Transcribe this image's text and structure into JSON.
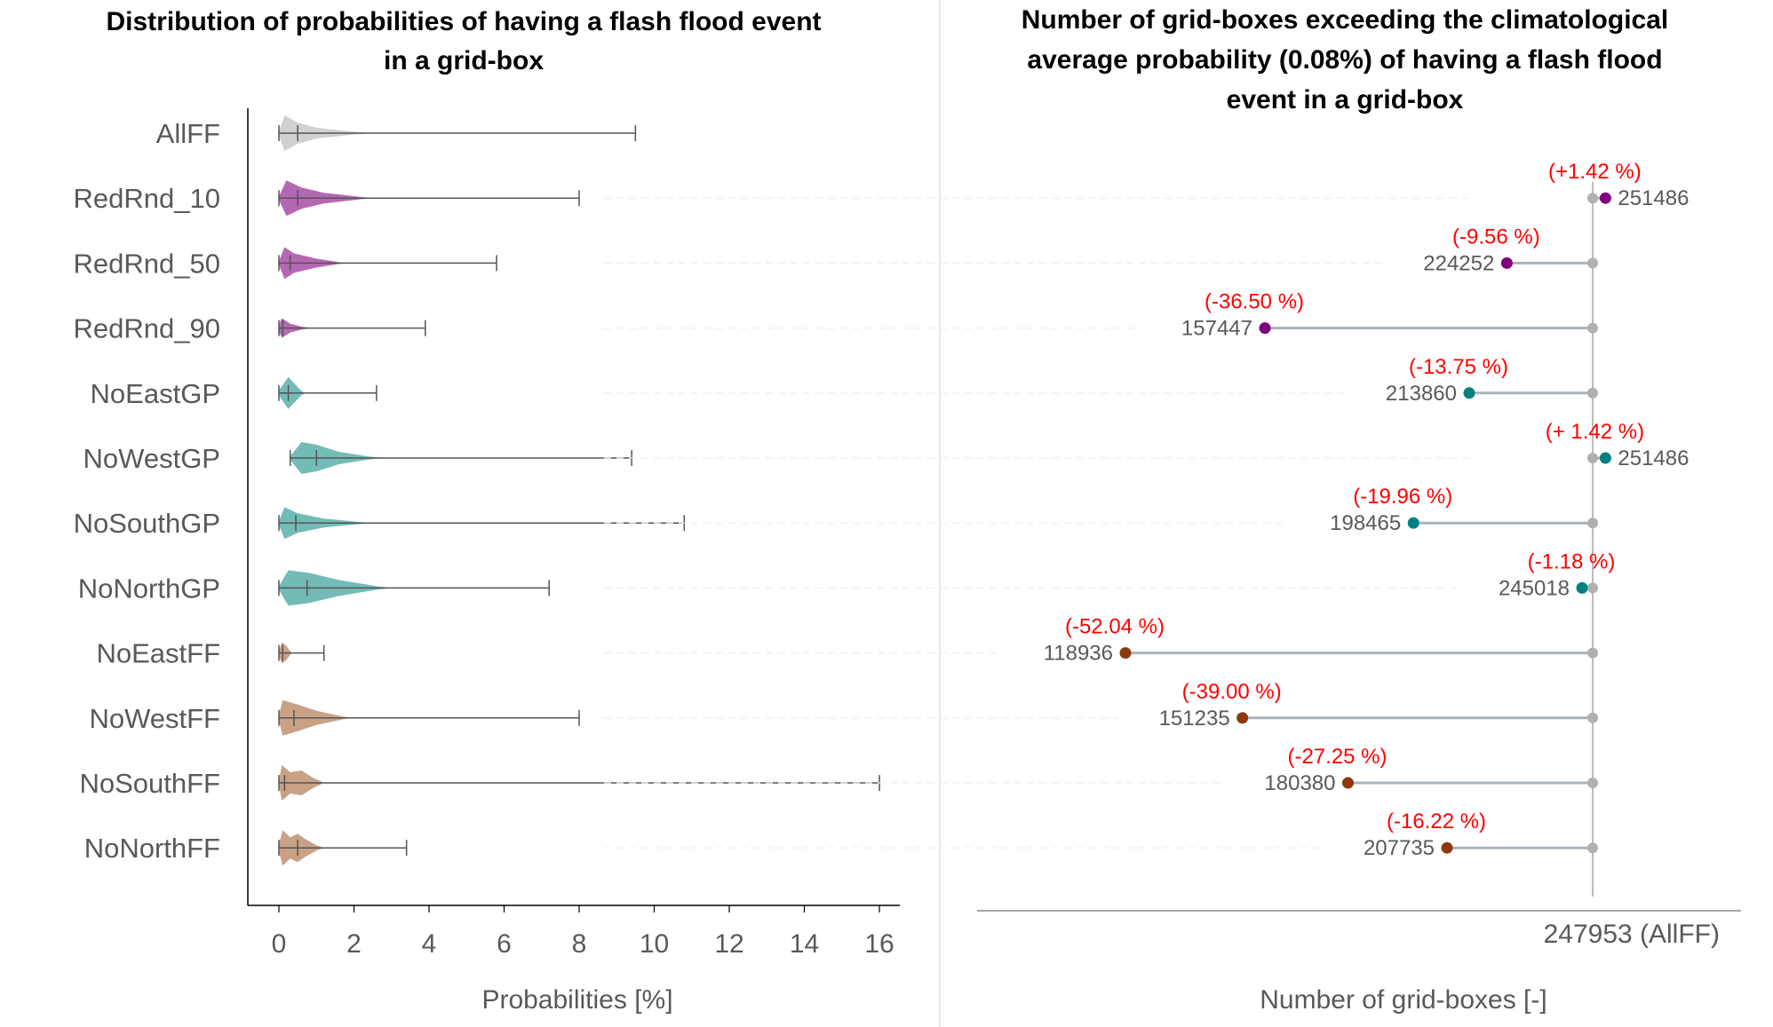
{
  "chart_data": [
    {
      "type": "violin",
      "title": "Distribution of probabilities of having a flash flood event in a grid-box",
      "title_lines": [
        "Distribution of probabilities of having a flash flood event",
        "in a grid-box"
      ],
      "xlabel": "Probabilities [%]",
      "xlim": [
        0,
        16
      ],
      "xticks": [
        0,
        2,
        4,
        6,
        8,
        10,
        12,
        14,
        16
      ],
      "grid": false,
      "colors": {
        "AllFF": "#c8c8c8",
        "RedRnd": "#a94ca6",
        "GP": "#5aafaa",
        "FF": "#c09070",
        "whisker": "#555555"
      },
      "categories": [
        "AllFF",
        "RedRnd_10",
        "RedRnd_50",
        "RedRnd_90",
        "NoEastGP",
        "NoWestGP",
        "NoSouthGP",
        "NoNorthGP",
        "NoEastFF",
        "NoWestFF",
        "NoSouthFF",
        "NoNorthFF"
      ],
      "series": [
        {
          "name": "AllFF",
          "color": "#c8c8c8",
          "min": 0.0,
          "median": 0.5,
          "max": 9.5,
          "shape": [
            [
              0,
              0.1
            ],
            [
              0.15,
              1.0
            ],
            [
              0.5,
              0.6
            ],
            [
              1,
              0.3
            ],
            [
              2,
              0.08
            ],
            [
              2.5,
              0
            ]
          ]
        },
        {
          "name": "RedRnd_10",
          "color": "#a94ca6",
          "min": 0.0,
          "median": 0.5,
          "max": 8.0,
          "shape": [
            [
              0,
              0.1
            ],
            [
              0.2,
              1.0
            ],
            [
              0.6,
              0.6
            ],
            [
              1.2,
              0.3
            ],
            [
              2.2,
              0.06
            ],
            [
              2.6,
              0
            ]
          ]
        },
        {
          "name": "RedRnd_50",
          "color": "#a94ca6",
          "min": 0.0,
          "median": 0.3,
          "max": 5.8,
          "shape": [
            [
              0,
              0.1
            ],
            [
              0.15,
              0.9
            ],
            [
              0.4,
              0.55
            ],
            [
              1,
              0.25
            ],
            [
              1.6,
              0.05
            ],
            [
              1.9,
              0
            ]
          ]
        },
        {
          "name": "RedRnd_90",
          "color": "#a94ca6",
          "min": 0.0,
          "median": 0.1,
          "max": 3.9,
          "shape": [
            [
              0,
              0.2
            ],
            [
              0.08,
              0.55
            ],
            [
              0.3,
              0.25
            ],
            [
              0.6,
              0.08
            ],
            [
              0.9,
              0
            ]
          ]
        },
        {
          "name": "NoEastGP",
          "color": "#5aafaa",
          "min": 0.0,
          "median": 0.25,
          "max": 2.6,
          "shape": [
            [
              0,
              0.15
            ],
            [
              0.25,
              0.9
            ],
            [
              0.45,
              0.45
            ],
            [
              0.6,
              0.12
            ],
            [
              0.7,
              0
            ]
          ]
        },
        {
          "name": "NoWestGP",
          "color": "#5aafaa",
          "min": 0.3,
          "median": 1.0,
          "max": 9.4,
          "shape": [
            [
              0.3,
              0.1
            ],
            [
              0.6,
              0.9
            ],
            [
              1.0,
              0.75
            ],
            [
              1.6,
              0.35
            ],
            [
              2.4,
              0.08
            ],
            [
              2.8,
              0
            ]
          ]
        },
        {
          "name": "NoSouthGP",
          "color": "#5aafaa",
          "min": 0.0,
          "median": 0.45,
          "max": 10.8,
          "shape": [
            [
              0,
              0.1
            ],
            [
              0.15,
              0.9
            ],
            [
              0.5,
              0.55
            ],
            [
              1.2,
              0.25
            ],
            [
              2.2,
              0.05
            ],
            [
              2.6,
              0
            ]
          ]
        },
        {
          "name": "NoNorthGP",
          "color": "#5aafaa",
          "min": 0.0,
          "median": 0.75,
          "max": 7.2,
          "shape": [
            [
              0,
              0.1
            ],
            [
              0.25,
              1.0
            ],
            [
              0.8,
              0.85
            ],
            [
              1.6,
              0.45
            ],
            [
              2.6,
              0.1
            ],
            [
              3.0,
              0
            ]
          ]
        },
        {
          "name": "NoEastFF",
          "color": "#c09070",
          "min": 0.0,
          "median": 0.1,
          "max": 1.2,
          "shape": [
            [
              0,
              0.15
            ],
            [
              0.08,
              0.6
            ],
            [
              0.2,
              0.4
            ],
            [
              0.3,
              0.1
            ],
            [
              0.35,
              0
            ]
          ]
        },
        {
          "name": "NoWestFF",
          "color": "#c09070",
          "min": 0.0,
          "median": 0.4,
          "max": 8.0,
          "shape": [
            [
              0,
              0.15
            ],
            [
              0.1,
              1.0
            ],
            [
              0.5,
              0.75
            ],
            [
              1.0,
              0.4
            ],
            [
              1.7,
              0.08
            ],
            [
              2.0,
              0
            ]
          ]
        },
        {
          "name": "NoSouthFF",
          "color": "#c09070",
          "min": 0.0,
          "median": 0.15,
          "max": 16.0,
          "shape": [
            [
              0,
              0.15
            ],
            [
              0.08,
              1.0
            ],
            [
              0.3,
              0.6
            ],
            [
              0.6,
              0.7
            ],
            [
              0.9,
              0.3
            ],
            [
              1.2,
              0
            ]
          ]
        },
        {
          "name": "NoNorthFF",
          "color": "#c09070",
          "min": 0.0,
          "median": 0.5,
          "max": 3.4,
          "shape": [
            [
              0,
              0.2
            ],
            [
              0.1,
              1.0
            ],
            [
              0.3,
              0.6
            ],
            [
              0.5,
              0.8
            ],
            [
              0.7,
              0.5
            ],
            [
              1.0,
              0.15
            ],
            [
              1.2,
              0
            ]
          ]
        }
      ]
    },
    {
      "type": "lollipop",
      "title": "Number of grid-boxes exceeding the climatological average probability (0.08%) of having a flash flood event in a grid-box",
      "title_lines": [
        "Number of grid-boxes exceeding the climatological",
        "average probability (0.08%) of having a flash flood",
        "event in a grid-box"
      ],
      "xlabel": "Number of grid-boxes [-]",
      "reference": {
        "value": 247953,
        "label": "247953 (AllFF)"
      },
      "xlim": [
        100000,
        255000
      ],
      "grid": false,
      "colors": {
        "stem": "#a9b3bc",
        "reference": "#a6a6a6",
        "purple": "#800080",
        "teal": "#008080",
        "brown": "#8b3a0e",
        "pct": "#ff0000"
      },
      "categories": [
        "RedRnd_10",
        "RedRnd_50",
        "RedRnd_90",
        "NoEastGP",
        "NoWestGP",
        "NoSouthGP",
        "NoNorthGP",
        "NoEastFF",
        "NoWestFF",
        "NoSouthFF",
        "NoNorthFF"
      ],
      "series": [
        {
          "name": "RedRnd_10",
          "value": 251486,
          "label": "251486",
          "pct": "(+1.42 %)",
          "color": "#800080"
        },
        {
          "name": "RedRnd_50",
          "value": 224252,
          "label": "224252",
          "pct": "(-9.56 %)",
          "color": "#800080"
        },
        {
          "name": "RedRnd_90",
          "value": 157447,
          "label": "157447",
          "pct": "(-36.50 %)",
          "color": "#800080"
        },
        {
          "name": "NoEastGP",
          "value": 213860,
          "label": "213860",
          "pct": "(-13.75 %)",
          "color": "#008080"
        },
        {
          "name": "NoWestGP",
          "value": 251486,
          "label": "251486",
          "pct": "(+ 1.42 %)",
          "color": "#008080"
        },
        {
          "name": "NoSouthGP",
          "value": 198465,
          "label": "198465",
          "pct": "(-19.96 %)",
          "color": "#008080"
        },
        {
          "name": "NoNorthGP",
          "value": 245018,
          "label": "245018",
          "pct": "(-1.18 %)",
          "color": "#008080"
        },
        {
          "name": "NoEastFF",
          "value": 118936,
          "label": "118936",
          "pct": "(-52.04 %)",
          "color": "#8b3a0e"
        },
        {
          "name": "NoWestFF",
          "value": 151235,
          "label": "151235",
          "pct": "(-39.00 %)",
          "color": "#8b3a0e"
        },
        {
          "name": "NoSouthFF",
          "value": 180380,
          "label": "180380",
          "pct": "(-27.25 %)",
          "color": "#8b3a0e"
        },
        {
          "name": "NoNorthFF",
          "value": 207735,
          "label": "207735",
          "pct": "(-16.22 %)",
          "color": "#8b3a0e"
        }
      ]
    }
  ]
}
